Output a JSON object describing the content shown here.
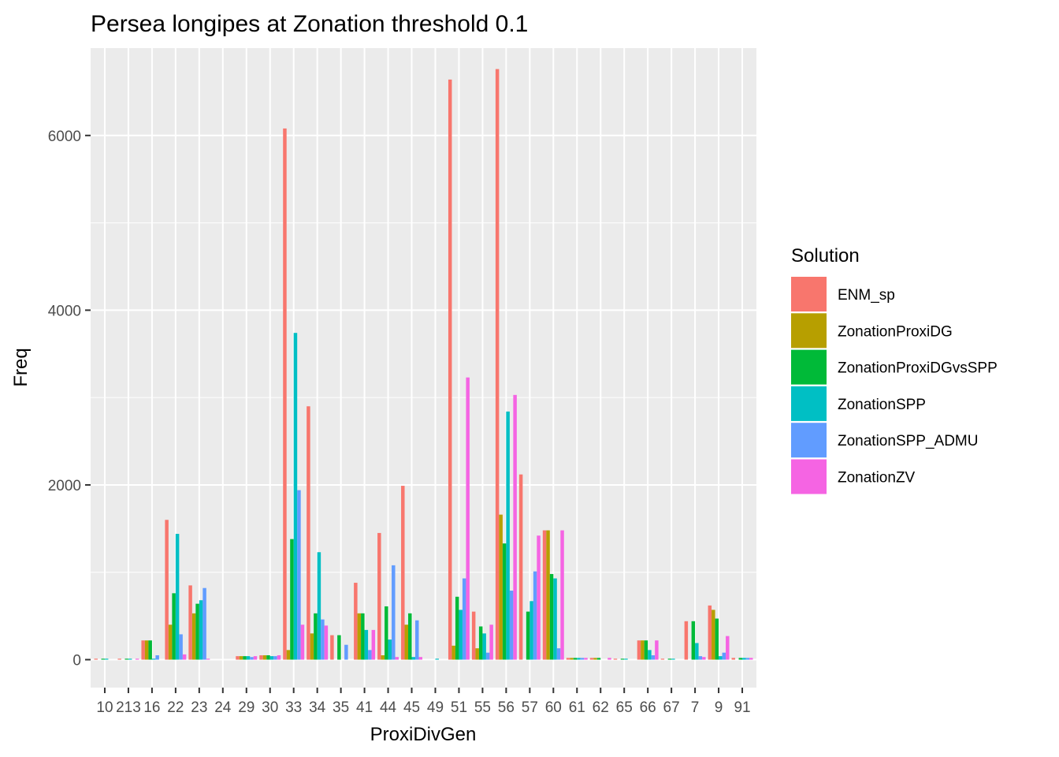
{
  "chart_data": {
    "type": "bar",
    "title": "Persea longipes at Zonation threshold 0.1",
    "xlabel": "ProxiDivGen",
    "ylabel": "Freq",
    "legend_title": "Solution",
    "legend_position": "right",
    "grid": true,
    "ylim": [
      -320,
      7000
    ],
    "yticks": [
      0,
      2000,
      4000,
      6000
    ],
    "categories": [
      "10",
      "213",
      "16",
      "22",
      "23",
      "24",
      "29",
      "30",
      "33",
      "34",
      "35",
      "41",
      "44",
      "45",
      "49",
      "51",
      "55",
      "56",
      "57",
      "60",
      "61",
      "62",
      "65",
      "66",
      "67",
      "7",
      "9",
      "91"
    ],
    "tick_labels": [
      "10",
      "213",
      "16",
      "22",
      "23",
      "24",
      "29",
      "30",
      "33",
      "34",
      "35",
      "41",
      "44",
      "45",
      "49",
      "51",
      "55",
      "56",
      "57",
      "60",
      "61",
      "62",
      "65",
      "66",
      "67",
      "7",
      "9",
      "91"
    ],
    "series": [
      {
        "name": "ENM_sp",
        "color": "#F8766D",
        "values": [
          10,
          5,
          220,
          1600,
          850,
          0,
          40,
          50,
          6080,
          2900,
          280,
          880,
          1450,
          1990,
          0,
          6640,
          550,
          6760,
          2120,
          1480,
          20,
          20,
          10,
          220,
          10,
          440,
          620,
          20
        ]
      },
      {
        "name": "ZonationProxiDG",
        "color": "#B79F00",
        "values": [
          0,
          0,
          220,
          400,
          530,
          0,
          40,
          50,
          110,
          300,
          0,
          530,
          50,
          400,
          0,
          160,
          130,
          1660,
          0,
          1480,
          20,
          20,
          0,
          220,
          0,
          0,
          570,
          0
        ]
      },
      {
        "name": "ZonationProxiDGvsSPP",
        "color": "#00BA38",
        "values": [
          10,
          5,
          220,
          760,
          640,
          0,
          40,
          50,
          1380,
          530,
          280,
          530,
          610,
          530,
          0,
          720,
          380,
          1330,
          550,
          980,
          20,
          20,
          10,
          220,
          10,
          440,
          470,
          20
        ]
      },
      {
        "name": "ZonationSPP",
        "color": "#00BFC4",
        "values": [
          10,
          5,
          10,
          1440,
          680,
          0,
          40,
          40,
          3740,
          1230,
          0,
          340,
          230,
          30,
          10,
          570,
          300,
          2840,
          670,
          930,
          20,
          0,
          10,
          110,
          10,
          190,
          40,
          20
        ]
      },
      {
        "name": "ZonationSPP_ADMU",
        "color": "#619CFF",
        "values": [
          0,
          0,
          50,
          290,
          820,
          0,
          30,
          40,
          1940,
          460,
          170,
          110,
          1080,
          450,
          0,
          930,
          80,
          790,
          1010,
          130,
          20,
          0,
          0,
          50,
          0,
          40,
          80,
          20
        ]
      },
      {
        "name": "ZonationZV",
        "color": "#F564E3",
        "values": [
          0,
          10,
          0,
          60,
          10,
          0,
          40,
          50,
          400,
          390,
          0,
          340,
          30,
          30,
          0,
          3230,
          400,
          3030,
          1420,
          1480,
          20,
          20,
          0,
          220,
          0,
          30,
          270,
          20
        ]
      }
    ]
  }
}
